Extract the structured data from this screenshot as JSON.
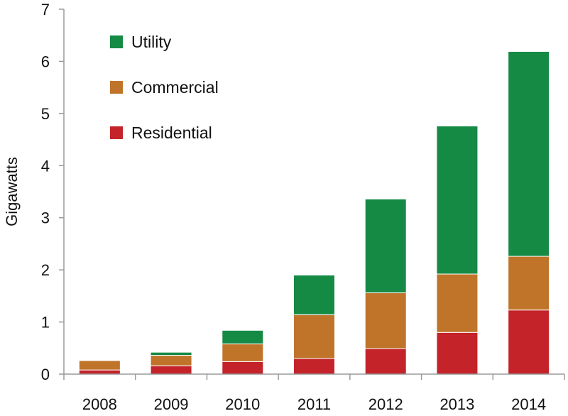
{
  "chart_data": {
    "type": "bar",
    "stacked": true,
    "title": "",
    "xlabel": "",
    "ylabel": "Gigawatts",
    "ylim": [
      0,
      7
    ],
    "yticks": [
      0,
      1,
      2,
      3,
      4,
      5,
      6,
      7
    ],
    "grid": false,
    "legend_placement": "top-left",
    "categories": [
      "2008",
      "2009",
      "2010",
      "2011",
      "2012",
      "2013",
      "2014"
    ],
    "series": [
      {
        "name": "Residential",
        "color": "#c4232a",
        "values": [
          0.08,
          0.16,
          0.24,
          0.3,
          0.49,
          0.8,
          1.23
        ]
      },
      {
        "name": "Commercial",
        "color": "#bf742a",
        "values": [
          0.18,
          0.2,
          0.34,
          0.84,
          1.07,
          1.12,
          1.03
        ]
      },
      {
        "name": "Utility",
        "color": "#158a45",
        "values": [
          0.0,
          0.06,
          0.26,
          0.76,
          1.8,
          2.84,
          3.93
        ]
      }
    ],
    "legend_order": [
      "Utility",
      "Commercial",
      "Residential"
    ]
  }
}
